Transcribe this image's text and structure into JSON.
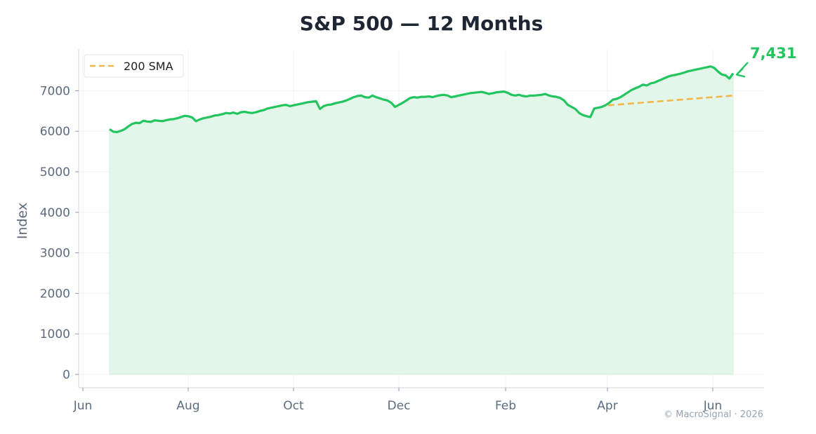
{
  "chart_data": {
    "type": "area",
    "title": "S&P 500 — 12 Months",
    "xlabel": "",
    "ylabel": "Index",
    "x_ticks": [
      "Jun",
      "Aug",
      "Oct",
      "Dec",
      "Feb",
      "Apr",
      "Jun"
    ],
    "y_ticks": [
      0,
      1000,
      2000,
      3000,
      4000,
      5000,
      6000,
      7000
    ],
    "ylim": [
      -350,
      7950
    ],
    "grid": true,
    "legend_position": "top-left",
    "x_start": "Jun",
    "x_end": "Jun",
    "series": [
      {
        "name": "",
        "style": "solid-with-fill",
        "color": "#22c55e",
        "fill_color": "#e2f6ea",
        "values": [
          6050,
          5990,
          5980,
          6010,
          6050,
          6120,
          6180,
          6210,
          6200,
          6260,
          6240,
          6230,
          6270,
          6260,
          6250,
          6270,
          6290,
          6300,
          6320,
          6350,
          6380,
          6370,
          6340,
          6250,
          6290,
          6320,
          6340,
          6360,
          6390,
          6400,
          6420,
          6450,
          6440,
          6460,
          6430,
          6470,
          6480,
          6460,
          6450,
          6470,
          6500,
          6520,
          6560,
          6580,
          6600,
          6620,
          6640,
          6650,
          6620,
          6640,
          6660,
          6680,
          6700,
          6720,
          6730,
          6740,
          6550,
          6620,
          6650,
          6660,
          6690,
          6710,
          6730,
          6760,
          6800,
          6840,
          6870,
          6880,
          6840,
          6830,
          6880,
          6840,
          6810,
          6780,
          6760,
          6700,
          6600,
          6650,
          6700,
          6760,
          6820,
          6840,
          6830,
          6850,
          6850,
          6860,
          6840,
          6870,
          6890,
          6900,
          6880,
          6840,
          6860,
          6880,
          6900,
          6920,
          6940,
          6950,
          6960,
          6970,
          6950,
          6920,
          6940,
          6960,
          6970,
          6980,
          6950,
          6900,
          6880,
          6900,
          6870,
          6860,
          6880,
          6880,
          6890,
          6900,
          6920,
          6880,
          6860,
          6850,
          6820,
          6760,
          6650,
          6600,
          6550,
          6450,
          6400,
          6370,
          6350,
          6560,
          6580,
          6600,
          6640,
          6700,
          6780,
          6800,
          6840,
          6900,
          6960,
          7020,
          7060,
          7100,
          7150,
          7130,
          7180,
          7200,
          7240,
          7280,
          7320,
          7360,
          7380,
          7400,
          7420,
          7450,
          7480,
          7500,
          7520,
          7540,
          7560,
          7580,
          7600,
          7560,
          7470,
          7400,
          7380,
          7300,
          7431
        ]
      },
      {
        "name": "200 SMA",
        "style": "dashed",
        "color": "#f2b84b",
        "values_end_anchor": true,
        "values": [
          6640,
          6880
        ]
      }
    ],
    "annotations": [
      {
        "text": "7,431",
        "value": 7431,
        "color": "#22c55e",
        "arrow": true
      }
    ],
    "credit": "© MacroSignal · 2026"
  }
}
